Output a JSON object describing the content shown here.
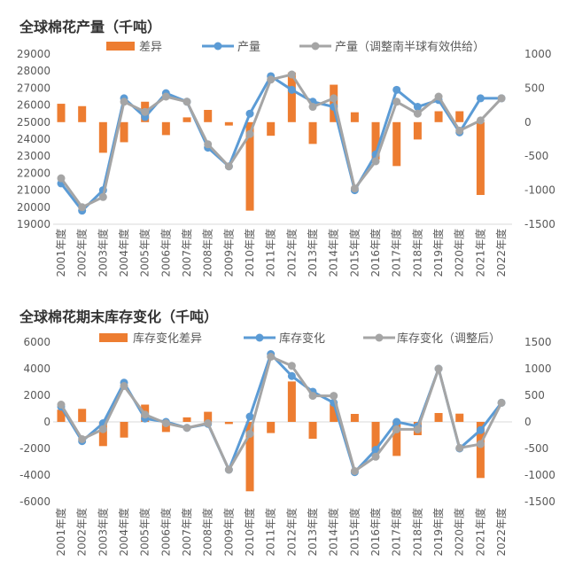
{
  "colors": {
    "bar": "#ED7D31",
    "line1": "#5B9BD5",
    "line2": "#A5A5A5",
    "axis": "#D9D9D9",
    "text": "#595959"
  },
  "chart_data": [
    {
      "type": "bar+line",
      "title": "全球棉花产量（千吨）",
      "categories": [
        "2001年度",
        "2002年度",
        "2003年度",
        "2004年度",
        "2005年度",
        "2006年度",
        "2007年度",
        "2008年度",
        "2009年度",
        "2010年度",
        "2011年度",
        "2012年度",
        "2013年度",
        "2014年度",
        "2015年度",
        "2016年度",
        "2017年度",
        "2018年度",
        "2019年度",
        "2020年度",
        "2021年度",
        "2022年度"
      ],
      "left_axis": {
        "ylim": [
          19000,
          29000
        ],
        "ticks": [
          29000,
          28000,
          27000,
          26000,
          25000,
          24000,
          23000,
          22000,
          21000,
          20000,
          19000
        ]
      },
      "right_axis": {
        "ylim": [
          -1500,
          1000
        ],
        "ticks": [
          1000,
          500,
          0,
          -500,
          -1000,
          -1500
        ]
      },
      "legend_position": "top",
      "grid": false,
      "series": [
        {
          "name": "差异",
          "kind": "bar",
          "axis": "right",
          "values": [
            270,
            235,
            -450,
            -295,
            300,
            -190,
            70,
            180,
            -50,
            -1300,
            -200,
            730,
            -320,
            550,
            145,
            -550,
            -645,
            -255,
            160,
            160,
            -1070,
            0
          ]
        },
        {
          "name": "产量",
          "kind": "line",
          "axis": "left",
          "values": [
            21400,
            19800,
            21000,
            26400,
            25300,
            26700,
            26200,
            23500,
            22400,
            25500,
            27700,
            26900,
            26200,
            25900,
            21000,
            23100,
            26900,
            25900,
            26300,
            24400,
            26400,
            26400
          ]
        },
        {
          "name": "产量（调整南半球有效供给）",
          "kind": "line",
          "axis": "left",
          "values": [
            21700,
            20000,
            20600,
            26200,
            25600,
            26500,
            26200,
            23700,
            22400,
            24300,
            27500,
            27800,
            25900,
            26400,
            21100,
            22700,
            26200,
            25500,
            26500,
            24500,
            25100,
            26400
          ]
        }
      ]
    },
    {
      "type": "bar+line",
      "title": "全球棉花期末库存变化（千吨）",
      "categories": [
        "2001年度",
        "2002年度",
        "2003年度",
        "2004年度",
        "2005年度",
        "2006年度",
        "2007年度",
        "2008年度",
        "2009年度",
        "2010年度",
        "2011年度",
        "2012年度",
        "2013年度",
        "2014年度",
        "2015年度",
        "2016年度",
        "2017年度",
        "2018年度",
        "2019年度",
        "2020年度",
        "2021年度",
        "2022年度"
      ],
      "left_axis": {
        "ylim": [
          -6000,
          6000
        ],
        "ticks": [
          6000,
          4000,
          2000,
          0,
          -2000,
          -4000,
          -6000
        ]
      },
      "right_axis": {
        "ylim": [
          -1500,
          1500
        ],
        "ticks": [
          1500,
          1000,
          500,
          0,
          -500,
          -1000,
          -1500
        ]
      },
      "legend_position": "top",
      "grid": false,
      "series": [
        {
          "name": "库存变化差异",
          "kind": "bar",
          "axis": "right",
          "values": [
            230,
            245,
            -455,
            -295,
            325,
            -190,
            85,
            190,
            -40,
            -1305,
            -210,
            760,
            -317,
            335,
            150,
            -560,
            -640,
            -250,
            167,
            155,
            -1055,
            0
          ]
        },
        {
          "name": "库存变化",
          "kind": "line",
          "axis": "left",
          "values": [
            1140,
            -1450,
            -100,
            2950,
            250,
            0,
            -450,
            -150,
            -3600,
            400,
            5100,
            3450,
            2270,
            1440,
            -3780,
            -2100,
            0,
            -330,
            4000,
            -2000,
            -620,
            1440
          ]
        },
        {
          "name": "库存变化（调整后）",
          "kind": "line",
          "axis": "left",
          "values": [
            1300,
            -1300,
            -550,
            2700,
            550,
            -100,
            -450,
            -100,
            -3600,
            -900,
            4900,
            4220,
            1960,
            1960,
            -3700,
            -2620,
            -560,
            -560,
            4000,
            -1960,
            -1670,
            1440
          ]
        }
      ]
    }
  ]
}
